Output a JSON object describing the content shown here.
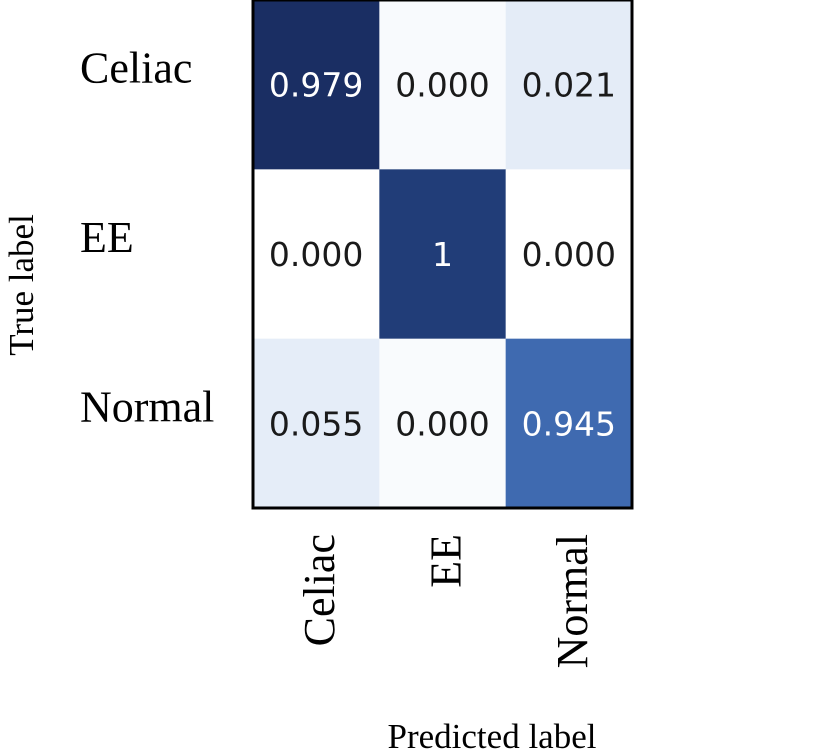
{
  "chart_data": {
    "type": "heatmap",
    "xlabel": "Predicted label",
    "ylabel": "True label",
    "x_categories": [
      "Celiac",
      "EE",
      "Normal"
    ],
    "y_categories": [
      "Celiac",
      "EE",
      "Normal"
    ],
    "cell_labels": [
      [
        "0.979",
        "0.000",
        "0.021"
      ],
      [
        "0.000",
        "1",
        "0.000"
      ],
      [
        "0.055",
        "0.000",
        "0.945"
      ]
    ],
    "values": [
      [
        0.979,
        0.0,
        0.021
      ],
      [
        0.0,
        1.0,
        0.0
      ],
      [
        0.055,
        0.0,
        0.945
      ]
    ],
    "colorscale": "Blues",
    "cell_colors": [
      [
        "#1a2e63",
        "#f8fafd",
        "#e4ecf7"
      ],
      [
        "#ffffff",
        "#213d78",
        "#ffffff"
      ],
      [
        "#e5edf8",
        "#f9fbfd",
        "#3f6ab0"
      ]
    ],
    "dark_text_color": "#1a1a1a",
    "light_text_color": "#ffffff"
  }
}
